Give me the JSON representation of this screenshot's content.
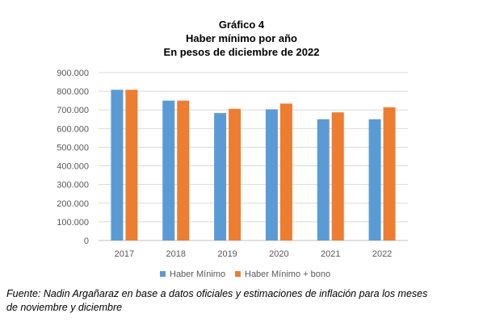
{
  "figure": {
    "label": "Gráfico 4",
    "subtitle_1": "Haber mínimo por año",
    "subtitle_2": "En pesos de diciembre de 2022",
    "source_line_1": "Fuente: Nadin Argañaraz en base a datos oficiales y estimaciones de inflación para los meses",
    "source_line_2": "de noviembre y diciembre"
  },
  "chart_data": {
    "type": "bar",
    "categories": [
      "2017",
      "2018",
      "2019",
      "2020",
      "2021",
      "2022"
    ],
    "series": [
      {
        "name": "Haber Mínimo",
        "color": "#5B9BD5",
        "values": [
          808000,
          750000,
          683000,
          703000,
          650000,
          650000
        ]
      },
      {
        "name": "Haber Mínimo + bono",
        "color": "#ED7D31",
        "values": [
          808000,
          750000,
          706000,
          734000,
          687000,
          714000
        ]
      }
    ],
    "y_ticks": [
      "0",
      "100.000",
      "200.000",
      "300.000",
      "400.000",
      "500.000",
      "600.000",
      "700.000",
      "800.000",
      "900.000"
    ],
    "ylim": [
      0,
      900000
    ],
    "grid": true,
    "legend_position": "bottom"
  }
}
